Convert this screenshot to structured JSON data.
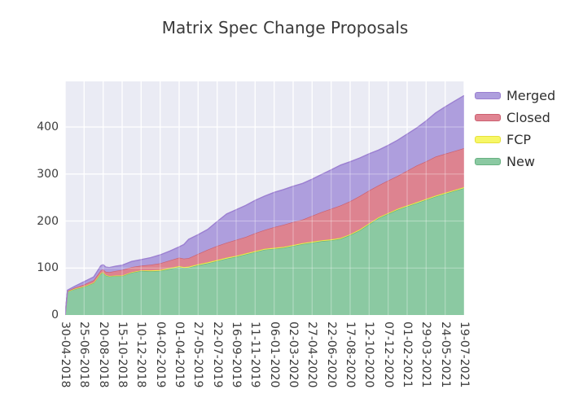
{
  "title": "Matrix Spec Change Proposals",
  "plot": {
    "background": "#eaebf4",
    "gridline_color": "#ffffff",
    "grid_overlay_color": "rgba(255,255,255,0.32)"
  },
  "legend": [
    {
      "label": "Merged",
      "fill": "#ae9edd",
      "line": "#9b7fd1"
    },
    {
      "label": "Closed",
      "fill": "#e08492",
      "line": "#cc6070"
    },
    {
      "label": "FCP",
      "fill": "#f7f766",
      "line": "#e6e13b"
    },
    {
      "label": "New",
      "fill": "#8bc9a2",
      "line": "#67b181"
    }
  ],
  "chart_data": {
    "type": "area",
    "stacked": true,
    "title": "Matrix Spec Change Proposals",
    "xlabel": "",
    "ylabel": "",
    "legend_position": "right-top",
    "grid": true,
    "ylim": [
      0,
      497
    ],
    "y_ticks": [
      0,
      100,
      200,
      300,
      400
    ],
    "x_tick_labels": [
      "30-04-2018",
      "25-06-2018",
      "20-08-2018",
      "15-10-2018",
      "10-12-2018",
      "04-02-2019",
      "01-04-2019",
      "27-05-2019",
      "22-07-2019",
      "16-09-2019",
      "11-11-2019",
      "06-01-2020",
      "02-03-2020",
      "27-04-2020",
      "22-06-2020",
      "17-08-2020",
      "12-10-2020",
      "07-12-2020",
      "01-02-2021",
      "29-03-2021",
      "24-05-2021",
      "19-07-2021"
    ],
    "x_tick_interval_days": 56,
    "x_span_days": 1176,
    "t_days": [
      0,
      7,
      28,
      56,
      84,
      105,
      112,
      120,
      130,
      150,
      168,
      196,
      224,
      252,
      280,
      308,
      336,
      350,
      364,
      392,
      420,
      448,
      476,
      504,
      532,
      560,
      588,
      616,
      644,
      672,
      700,
      728,
      756,
      784,
      812,
      840,
      868,
      896,
      924,
      952,
      980,
      1008,
      1036,
      1064,
      1092,
      1120,
      1148,
      1176
    ],
    "series": [
      {
        "name": "New",
        "fill": "#8bc9a2",
        "line": "#67b181",
        "values": [
          0,
          50,
          55,
          60,
          68,
          88,
          90,
          84,
          82,
          83,
          83,
          90,
          94,
          93,
          94,
          98,
          102,
          100,
          101,
          106,
          110,
          115,
          120,
          124,
          129,
          134,
          139,
          141,
          143,
          147,
          151,
          154,
          157,
          159,
          162,
          170,
          180,
          193,
          206,
          215,
          224,
          231,
          238,
          245,
          252,
          258,
          264,
          270
        ]
      },
      {
        "name": "FCP",
        "fill": "#f7f766",
        "line": "#e6e13b",
        "values": [
          0,
          0,
          1,
          1,
          1,
          1,
          1,
          1,
          1,
          1,
          1,
          1,
          1,
          2,
          2,
          2,
          2,
          2,
          2,
          2,
          2,
          2,
          2,
          2,
          2,
          2,
          2,
          2,
          2,
          2,
          2,
          2,
          2,
          2,
          2,
          2,
          2,
          2,
          2,
          2,
          2,
          2,
          2,
          2,
          2,
          2,
          2,
          2
        ]
      },
      {
        "name": "Closed",
        "fill": "#dd8390",
        "line": "#cc6070",
        "values": [
          0,
          1,
          2,
          4,
          5,
          6,
          6,
          7,
          8,
          10,
          12,
          11,
          10,
          12,
          14,
          16,
          18,
          18,
          18,
          22,
          27,
          30,
          32,
          34,
          35,
          38,
          40,
          44,
          47,
          49,
          50,
          55,
          60,
          65,
          69,
          70,
          71,
          70,
          68,
          69,
          70,
          74,
          78,
          80,
          83,
          83,
          83,
          83
        ]
      },
      {
        "name": "Merged",
        "fill": "#ae9edd",
        "line": "#9b7fd1",
        "values": [
          0,
          2,
          3,
          6,
          7,
          10,
          10,
          10,
          10,
          10,
          10,
          12,
          13,
          15,
          18,
          20,
          23,
          30,
          40,
          41,
          43,
          52,
          61,
          64,
          67,
          70,
          72,
          74,
          75,
          76,
          77,
          78,
          80,
          83,
          86,
          84,
          81,
          78,
          75,
          75,
          76,
          78,
          80,
          86,
          93,
          100,
          106,
          112
        ]
      }
    ]
  }
}
